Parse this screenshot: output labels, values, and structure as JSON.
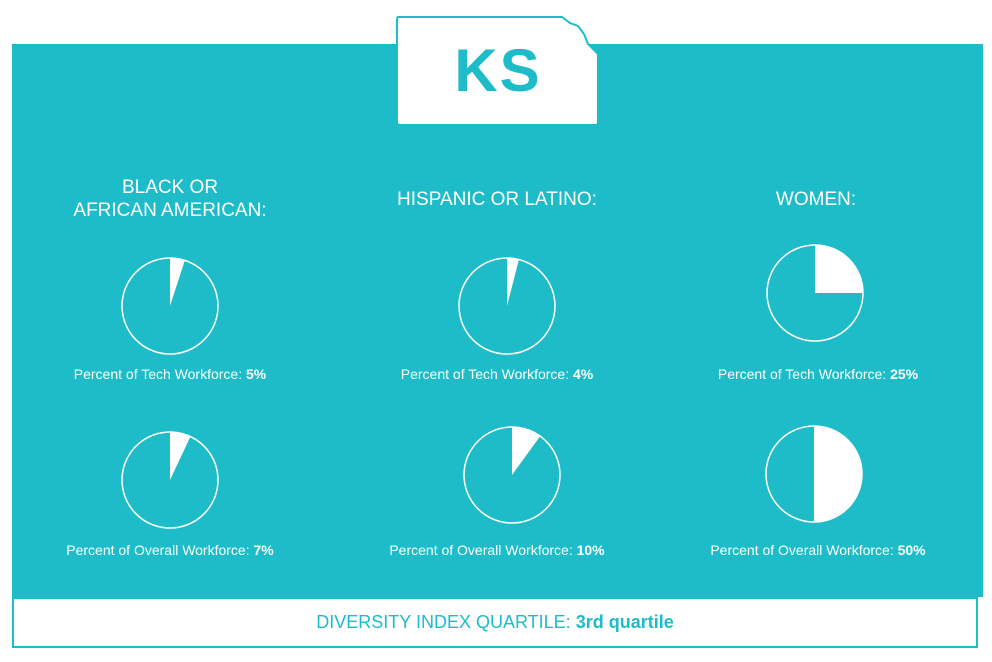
{
  "state": {
    "code": "KS"
  },
  "colors": {
    "panel": "#1dbcc8",
    "white": "#ffffff"
  },
  "chart_data": [
    {
      "type": "pie",
      "group": "BLACK OR AFRICAN AMERICAN:",
      "label": "Percent of Tech Workforce:",
      "value_text": "5%",
      "value": 5
    },
    {
      "type": "pie",
      "group": "BLACK OR AFRICAN AMERICAN:",
      "label": "Percent of Overall Workforce:",
      "value_text": "7%",
      "value": 7
    },
    {
      "type": "pie",
      "group": "HISPANIC OR LATINO:",
      "label": "Percent of Tech Workforce:",
      "value_text": "4%",
      "value": 4
    },
    {
      "type": "pie",
      "group": "HISPANIC OR LATINO:",
      "label": "Percent of Overall Workforce:",
      "value_text": "10%",
      "value": 10
    },
    {
      "type": "pie",
      "group": "WOMEN:",
      "label": "Percent of Tech Workforce:",
      "value_text": "25%",
      "value": 25
    },
    {
      "type": "pie",
      "group": "WOMEN:",
      "label": "Percent of Overall Workforce:",
      "value_text": "50%",
      "value": 50
    }
  ],
  "columns": [
    {
      "title_line1": "BLACK OR",
      "title_line2": "AFRICAN AMERICAN:"
    },
    {
      "title_line1": "HISPANIC OR LATINO:",
      "title_line2": ""
    },
    {
      "title_line1": "WOMEN:",
      "title_line2": ""
    }
  ],
  "footer": {
    "label": "DIVERSITY INDEX QUARTILE:",
    "value": "3rd quartile"
  }
}
